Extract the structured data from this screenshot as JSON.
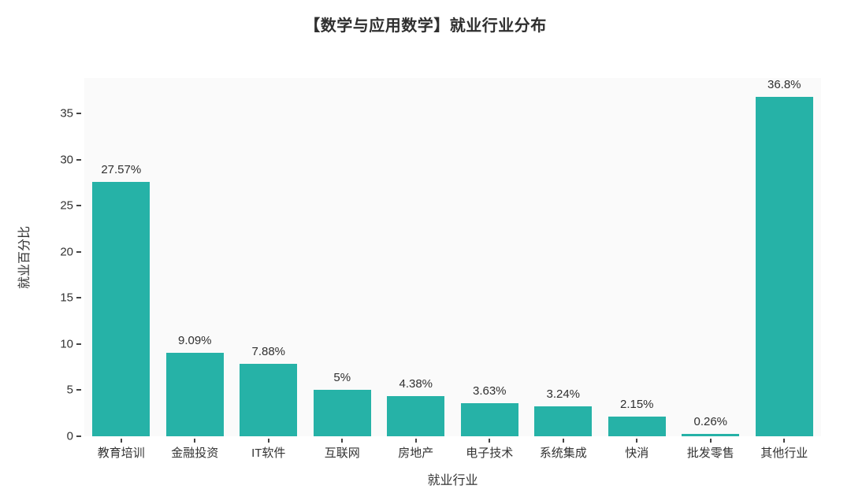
{
  "chart_data": {
    "type": "bar",
    "title": "【数学与应用数学】就业行业分布",
    "xlabel": "就业行业",
    "ylabel": "就业百分比",
    "categories": [
      "教育培训",
      "金融投资",
      "IT软件",
      "互联网",
      "房地产",
      "电子技术",
      "系统集成",
      "快消",
      "批发零售",
      "其他行业"
    ],
    "values": [
      27.57,
      9.09,
      7.88,
      5,
      4.38,
      3.63,
      3.24,
      2.15,
      0.26,
      36.8
    ],
    "value_labels": [
      "27.57%",
      "9.09%",
      "7.88%",
      "5%",
      "4.38%",
      "3.63%",
      "3.24%",
      "2.15%",
      "0.26%",
      "36.8%"
    ],
    "yticks": [
      0,
      5,
      10,
      15,
      20,
      25,
      30,
      35
    ],
    "ylim": [
      0,
      38.85
    ],
    "grid": false,
    "legend": "none",
    "colors": {
      "bar": "#26b2a7",
      "plot_bg": "#fafafa",
      "canvas_bg": "#ffffff",
      "text": "#333333"
    }
  }
}
